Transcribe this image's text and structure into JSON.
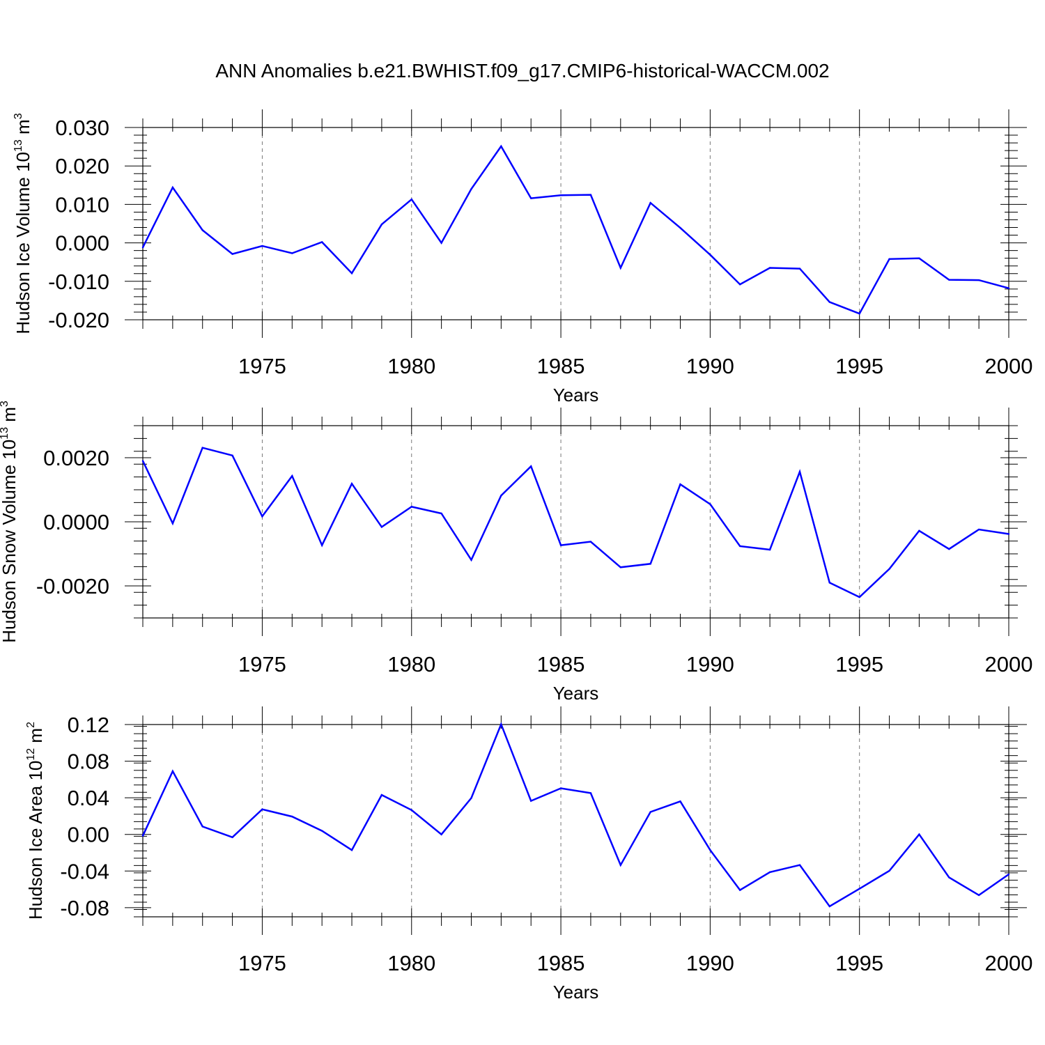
{
  "title": "ANN Anomalies b.e21.BWHIST.f09_g17.CMIP6-historical-WACCM.002",
  "chart_data": [
    {
      "type": "line",
      "ylabel": {
        "main": "Hudson Ice Volume 10",
        "exp": "13",
        "mid": " m",
        "unit_exp": "3"
      },
      "xlabel": "Years",
      "xlim": [
        1971,
        2000
      ],
      "ylim": [
        -0.02,
        0.03
      ],
      "yticks": [
        -0.02,
        -0.01,
        0.0,
        0.01,
        0.02,
        0.03
      ],
      "ytick_labels": [
        "-0.020",
        "-0.010",
        "0.000",
        "0.010",
        "0.020",
        "0.030"
      ],
      "xticks": [
        1975,
        1980,
        1985,
        1990,
        1995,
        2000
      ],
      "xtick_labels": [
        "1975",
        "1980",
        "1985",
        "1990",
        "1995",
        "2000"
      ],
      "series": [
        {
          "color": "#0000ff",
          "x": [
            1971,
            1972,
            1973,
            1974,
            1975,
            1976,
            1977,
            1978,
            1979,
            1980,
            1981,
            1982,
            1983,
            1984,
            1985,
            1986,
            1987,
            1988,
            1989,
            1990,
            1991,
            1992,
            1993,
            1994,
            1995,
            1996,
            1997,
            1998,
            1999,
            2000
          ],
          "y": [
            -0.0012,
            0.0144,
            0.0033,
            -0.0029,
            -0.0008,
            -0.0027,
            0.0002,
            -0.0079,
            0.0048,
            0.0113,
            0.0,
            0.014,
            0.0251,
            0.0116,
            0.0124,
            0.0125,
            -0.0065,
            0.0104,
            0.0039,
            -0.0031,
            -0.0108,
            -0.0065,
            -0.0067,
            -0.0154,
            -0.0184,
            -0.0042,
            -0.004,
            -0.0096,
            -0.0097,
            -0.0118
          ]
        }
      ]
    },
    {
      "type": "line",
      "ylabel": {
        "main": "Hudson Snow Volume 10",
        "exp": "13",
        "mid": " m",
        "unit_exp": "3"
      },
      "xlabel": "Years",
      "xlim": [
        1971,
        2000
      ],
      "ylim": [
        -0.003,
        0.003
      ],
      "yticks": [
        -0.002,
        0.0,
        0.002
      ],
      "ytick_labels": [
        "-0.0020",
        "0.0000",
        "0.0020"
      ],
      "xticks": [
        1975,
        1980,
        1985,
        1990,
        1995,
        2000
      ],
      "xtick_labels": [
        "1975",
        "1980",
        "1985",
        "1990",
        "1995",
        "2000"
      ],
      "series": [
        {
          "color": "#0000ff",
          "x": [
            1971,
            1972,
            1973,
            1974,
            1975,
            1976,
            1977,
            1978,
            1979,
            1980,
            1981,
            1982,
            1983,
            1984,
            1985,
            1986,
            1987,
            1988,
            1989,
            1990,
            1991,
            1992,
            1993,
            1994,
            1995,
            1996,
            1997,
            1998,
            1999,
            2000
          ],
          "y": [
            0.0019,
            -5e-05,
            0.00231,
            0.00207,
            0.00017,
            0.00143,
            -0.00073,
            0.00119,
            -0.00016,
            0.00047,
            0.00026,
            -0.00119,
            0.00082,
            0.00173,
            -0.00073,
            -0.00062,
            -0.00142,
            -0.00131,
            0.00117,
            0.00055,
            -0.00076,
            -0.00087,
            0.00156,
            -0.0019,
            -0.00235,
            -0.00147,
            -0.00028,
            -0.00085,
            -0.00024,
            -0.00038
          ]
        }
      ]
    },
    {
      "type": "line",
      "ylabel": {
        "main": "Hudson Ice Area 10",
        "exp": "12",
        "mid": " m",
        "unit_exp": "2"
      },
      "xlabel": "Years",
      "xlim": [
        1971,
        2000
      ],
      "ylim": [
        -0.09,
        0.12
      ],
      "yticks": [
        -0.08,
        -0.04,
        0.0,
        0.04,
        0.08,
        0.12
      ],
      "ytick_labels": [
        "-0.08",
        "-0.04",
        "0.00",
        "0.04",
        "0.08",
        "0.12"
      ],
      "xticks": [
        1975,
        1980,
        1985,
        1990,
        1995,
        2000
      ],
      "xtick_labels": [
        "1975",
        "1980",
        "1985",
        "1990",
        "1995",
        "2000"
      ],
      "series": [
        {
          "color": "#0000ff",
          "x": [
            1971,
            1972,
            1973,
            1974,
            1975,
            1976,
            1977,
            1978,
            1979,
            1980,
            1981,
            1982,
            1983,
            1984,
            1985,
            1986,
            1987,
            1988,
            1989,
            1990,
            1991,
            1992,
            1993,
            1994,
            1995,
            1996,
            1997,
            1998,
            1999,
            2000
          ],
          "y": [
            -0.0015,
            0.069,
            0.0086,
            -0.0031,
            0.0274,
            0.0195,
            0.0039,
            -0.0171,
            0.0431,
            0.0266,
            0.0,
            0.0397,
            0.1203,
            0.0366,
            0.0504,
            0.0451,
            -0.0335,
            0.0245,
            0.0361,
            -0.0171,
            -0.0608,
            -0.0412,
            -0.0335,
            -0.0786,
            -0.0593,
            -0.0397,
            0.0,
            -0.047,
            -0.0663,
            -0.0436
          ]
        }
      ]
    }
  ]
}
